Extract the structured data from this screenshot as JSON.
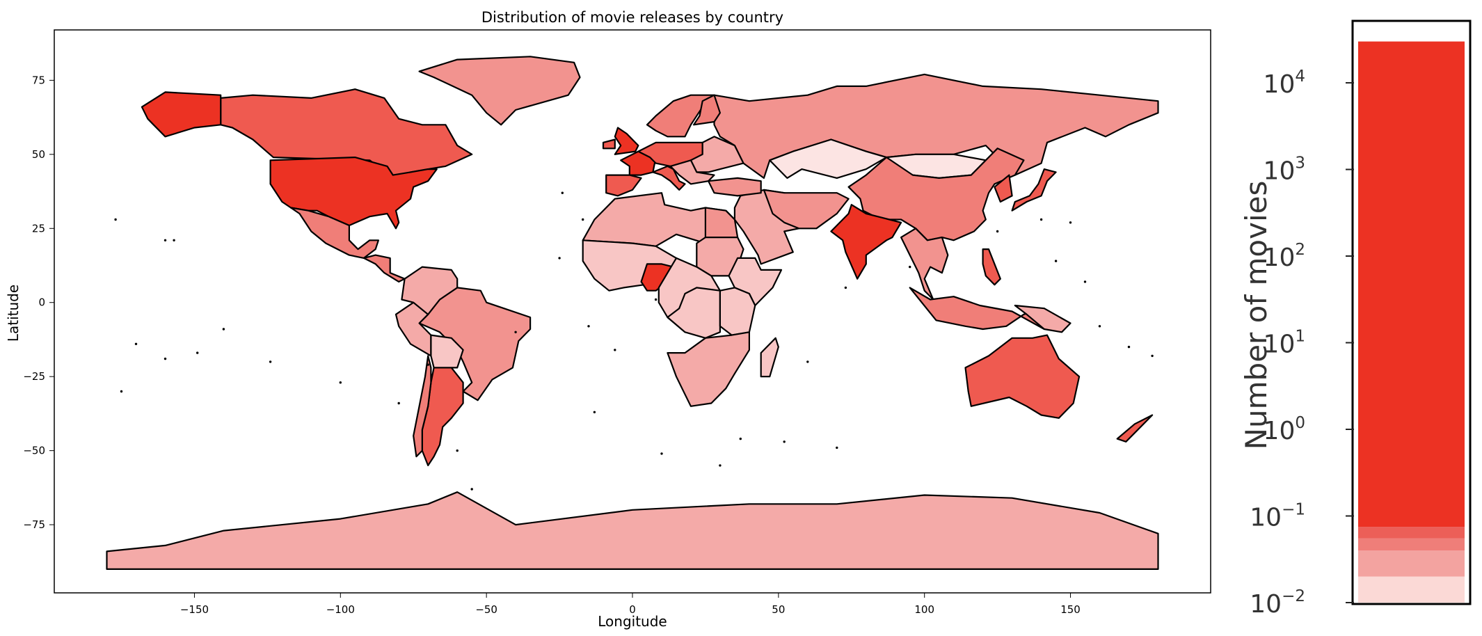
{
  "figure": {
    "title": "Distribution of movie releases by country",
    "xlabel": "Longitude",
    "ylabel": "Latitude"
  },
  "map_axes": {
    "xticks": [
      -150,
      -100,
      -50,
      0,
      50,
      100,
      150
    ],
    "yticks": [
      -75,
      -50,
      -25,
      0,
      25,
      50,
      75
    ],
    "xlim": [
      -198,
      198
    ],
    "ylim": [
      -98,
      92
    ]
  },
  "colorbar": {
    "label": "Number of movies",
    "scale": "log",
    "ticks": [
      {
        "value": 0.01,
        "base": "10",
        "exp": "−2"
      },
      {
        "value": 0.1,
        "base": "10",
        "exp": "−1"
      },
      {
        "value": 1,
        "base": "10",
        "exp": "0"
      },
      {
        "value": 10,
        "base": "10",
        "exp": "1"
      },
      {
        "value": 100,
        "base": "10",
        "exp": "2"
      },
      {
        "value": 1000,
        "base": "10",
        "exp": "3"
      },
      {
        "value": 10000,
        "base": "10",
        "exp": "4"
      }
    ],
    "range": [
      0.01,
      50000
    ],
    "bands": [
      {
        "from": 0.01,
        "to": 0.02,
        "color": "#fbd9d6"
      },
      {
        "from": 0.02,
        "to": 0.04,
        "color": "#f3a3a0"
      },
      {
        "from": 0.04,
        "to": 0.055,
        "color": "#ef7e79"
      },
      {
        "from": 0.055,
        "to": 0.075,
        "color": "#ec5f58"
      },
      {
        "from": 0.075,
        "to": 30000,
        "color": "#ec3223"
      }
    ]
  },
  "colors": {
    "very_high": "#ec3223",
    "high": "#ef5a50",
    "upper_mid": "#f07e78",
    "mid": "#f2938f",
    "lower_mid": "#f4aaa8",
    "low": "#f8c6c5",
    "very_low": "#fce4e3",
    "outline": "#000000"
  },
  "regions": [
    {
      "name": "United States",
      "level": "very_high"
    },
    {
      "name": "India",
      "level": "very_high"
    },
    {
      "name": "United Kingdom",
      "level": "very_high"
    },
    {
      "name": "France",
      "level": "very_high"
    },
    {
      "name": "Canada",
      "level": "high"
    },
    {
      "name": "Japan",
      "level": "high"
    },
    {
      "name": "Australia",
      "level": "high"
    },
    {
      "name": "China",
      "level": "upper_mid"
    },
    {
      "name": "Argentina",
      "level": "high"
    },
    {
      "name": "Russia",
      "level": "mid"
    },
    {
      "name": "Brazil",
      "level": "mid"
    },
    {
      "name": "Greenland",
      "level": "mid"
    },
    {
      "name": "Mexico",
      "level": "upper_mid"
    },
    {
      "name": "Antarctica",
      "level": "lower_mid"
    },
    {
      "name": "Kazakhstan",
      "level": "very_low"
    },
    {
      "name": "Mongolia",
      "level": "very_low"
    }
  ]
}
